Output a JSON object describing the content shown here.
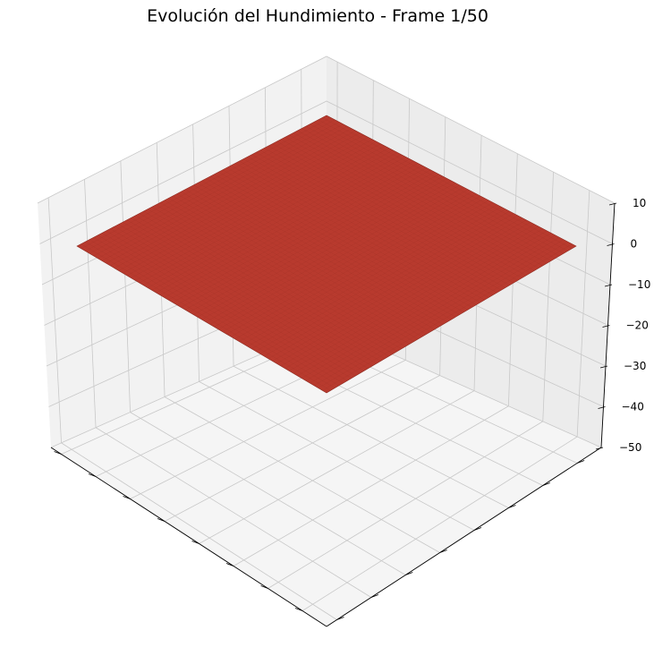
{
  "chart_data": {
    "type": "surface",
    "title": "Evolución del Hundimiento - Frame 1/50",
    "xlabel": "",
    "ylabel": "",
    "zlabel": "",
    "zlim": [
      -50,
      10
    ],
    "z_ticks": [
      10,
      0,
      -10,
      -20,
      -30,
      -40,
      -50
    ],
    "z_tick_labels": [
      "10",
      "0",
      "−10",
      "−20",
      "−30",
      "−40",
      "−50"
    ],
    "x_tick_count": 8,
    "y_tick_count": 8,
    "grid": true,
    "surface": {
      "z": 0,
      "color": "#b83a2e",
      "edge_color": "#8e2a20",
      "shape": "flat"
    }
  }
}
